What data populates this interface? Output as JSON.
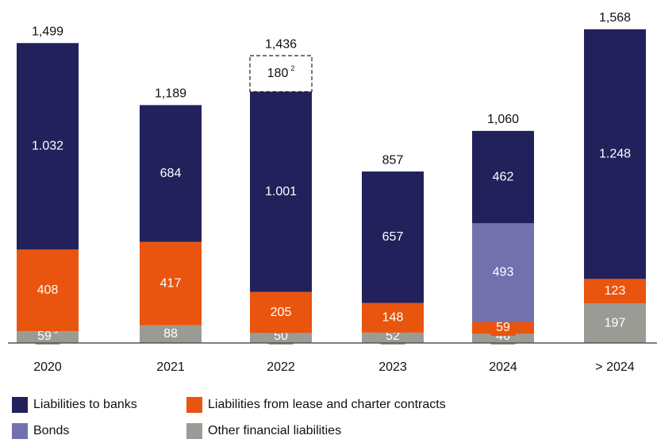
{
  "chart_data": {
    "type": "bar",
    "stacked": true,
    "categories": [
      "2020",
      "2021",
      "2022",
      "2023",
      "2024",
      "> 2024"
    ],
    "series": [
      {
        "name": "Other financial liabilities",
        "color": "#9b9b96",
        "values": [
          59,
          88,
          50,
          52,
          46,
          197
        ],
        "value_superscripts": [
          "3",
          null,
          null,
          null,
          null,
          null
        ]
      },
      {
        "name": "Liabilities from lease and charter contracts",
        "color": "#e9550e",
        "values": [
          408,
          417,
          205,
          148,
          59,
          123
        ]
      },
      {
        "name": "Bonds",
        "color": "#7271ae",
        "values": [
          null,
          null,
          null,
          null,
          493,
          null
        ]
      },
      {
        "name": "Liabilities to banks",
        "color": "#22215c",
        "values": [
          1032,
          684,
          1001,
          657,
          462,
          1248
        ],
        "value_labels": [
          "1.032",
          "684",
          "1.001",
          "657",
          "462",
          "1.248"
        ]
      },
      {
        "style": "dashed",
        "values": [
          null,
          null,
          180,
          null,
          null,
          null
        ],
        "value_superscripts": [
          null,
          null,
          "2",
          null,
          null,
          null
        ]
      }
    ],
    "totals": [
      1499,
      1189,
      1436,
      857,
      1060,
      1568
    ],
    "total_labels": [
      "1,499",
      "1,189",
      "1,436",
      "857",
      "1,060",
      "1,568"
    ]
  }
}
